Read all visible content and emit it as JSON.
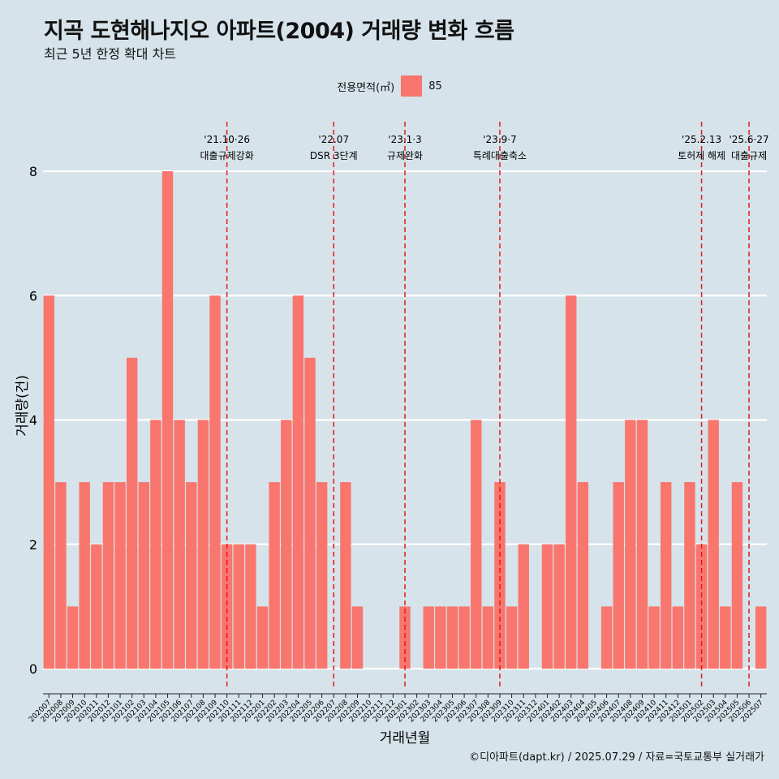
{
  "title": "지곡 도현해나지오 아파트(2004) 거래량 변화 흐름",
  "subtitle": "최근 5년 한정 확대 차트",
  "legend": {
    "title": "전용면적(㎡)",
    "item": "85",
    "color": "#f8766d"
  },
  "caption": "©디아파트(dapt.kr) / 2025.07.29 / 자료=국토교통부 실거래가",
  "chart_data": {
    "type": "bar",
    "xlabel": "거래년월",
    "ylabel": "거래량(건)",
    "ylim": [
      0,
      8
    ],
    "yticks": [
      0,
      2,
      4,
      6,
      8
    ],
    "grid": true,
    "bar_color": "#f8766d",
    "event_color": "#e31a1c",
    "categories": [
      "202007",
      "202008",
      "202009",
      "202010",
      "202011",
      "202012",
      "202101",
      "202102",
      "202103",
      "202104",
      "202105",
      "202106",
      "202107",
      "202108",
      "202109",
      "202110",
      "202111",
      "202112",
      "202201",
      "202202",
      "202203",
      "202204",
      "202205",
      "202206",
      "202207",
      "202208",
      "202209",
      "202210",
      "202211",
      "202212",
      "202301",
      "202302",
      "202303",
      "202304",
      "202305",
      "202306",
      "202307",
      "202308",
      "202309",
      "202310",
      "202311",
      "202312",
      "202401",
      "202402",
      "202403",
      "202404",
      "202405",
      "202406",
      "202407",
      "202408",
      "202409",
      "202410",
      "202411",
      "202412",
      "202501",
      "202502",
      "202503",
      "202504",
      "202505",
      "202506",
      "202507"
    ],
    "series": [
      {
        "name": "85",
        "values": [
          6,
          3,
          1,
          3,
          2,
          3,
          3,
          5,
          3,
          4,
          8,
          4,
          3,
          4,
          6,
          2,
          2,
          2,
          1,
          3,
          4,
          6,
          5,
          3,
          0,
          3,
          1,
          0,
          0,
          0,
          1,
          0,
          1,
          1,
          1,
          1,
          4,
          1,
          3,
          1,
          2,
          0,
          2,
          2,
          6,
          3,
          0,
          1,
          3,
          4,
          4,
          1,
          3,
          1,
          3,
          2,
          4,
          1,
          3,
          0,
          1
        ]
      }
    ],
    "events": [
      {
        "x": "202110",
        "date": "'21.10·26",
        "label": "대출규제강화"
      },
      {
        "x": "202207",
        "date": "'22.07",
        "label": "DSR 3단계"
      },
      {
        "x": "202301",
        "date": "'23.1·3",
        "label": "규제완화"
      },
      {
        "x": "202309",
        "date": "'23.9·7",
        "label": "특례대출축소"
      },
      {
        "x": "202502",
        "date": "'25.2.13",
        "label": "토허제 해제"
      },
      {
        "x": "202506",
        "date": "'25.6·27",
        "label": "대출규제"
      }
    ]
  }
}
